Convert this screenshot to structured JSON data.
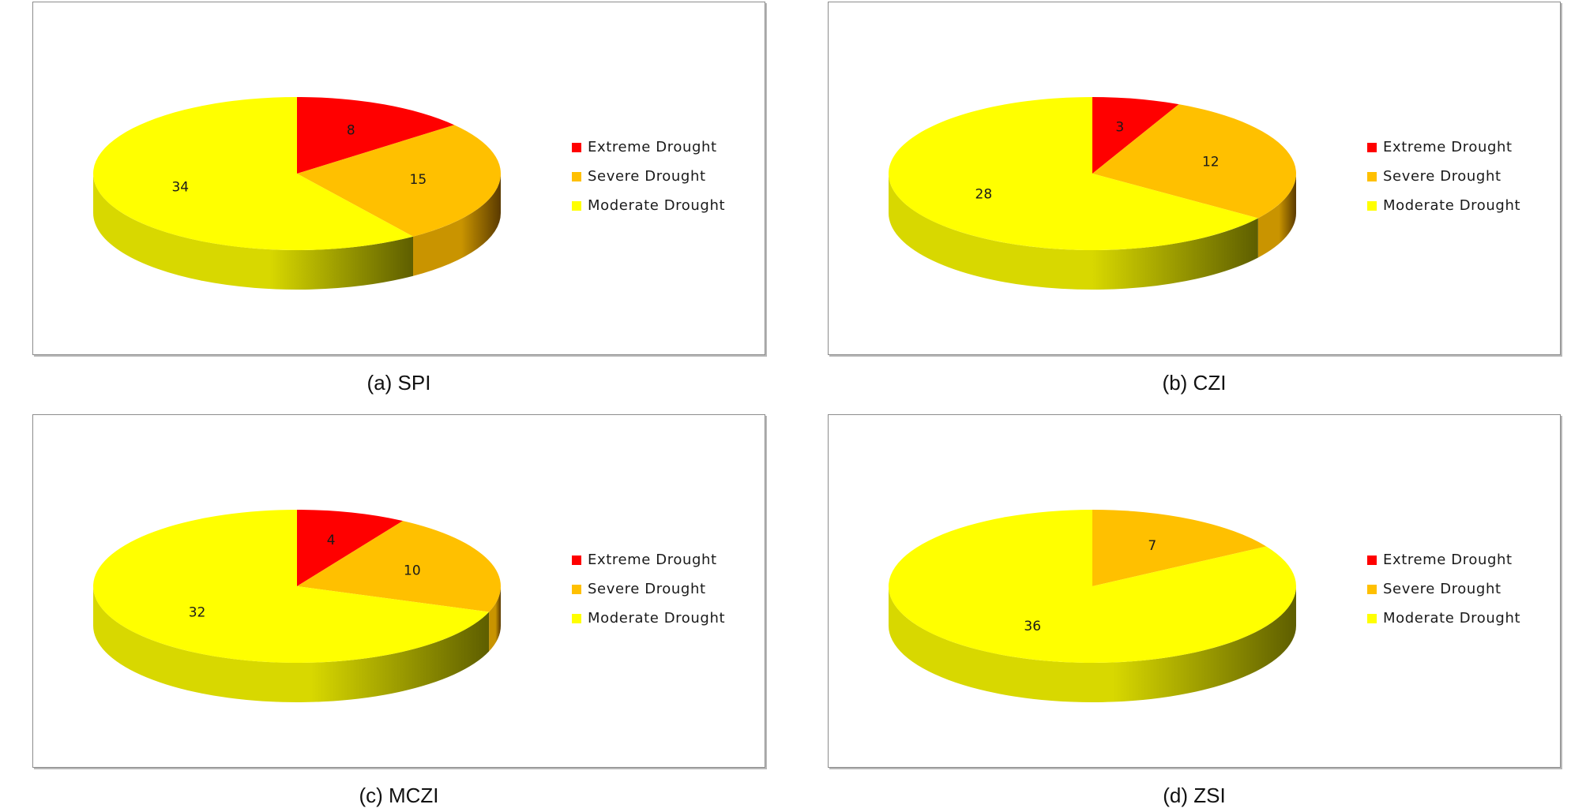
{
  "chart_data": [
    {
      "type": "pie",
      "caption": "(a) SPI",
      "categories": [
        "Extreme Drought",
        "Severe Drought",
        "Moderate Drought"
      ],
      "values": [
        8,
        15,
        34
      ],
      "data_labels": [
        "8",
        "15",
        "34"
      ],
      "legend_position": "right"
    },
    {
      "type": "pie",
      "caption": "(b) CZI",
      "categories": [
        "Extreme Drought",
        "Severe Drought",
        "Moderate Drought"
      ],
      "values": [
        3,
        12,
        28
      ],
      "data_labels": [
        "3",
        "12",
        "28"
      ],
      "legend_position": "right"
    },
    {
      "type": "pie",
      "caption": "(c) MCZI",
      "categories": [
        "Extreme Drought",
        "Severe Drought",
        "Moderate Drought"
      ],
      "values": [
        4,
        10,
        32
      ],
      "data_labels": [
        "4",
        "10",
        "32"
      ],
      "legend_position": "right"
    },
    {
      "type": "pie",
      "caption": "(d) ZSI",
      "categories": [
        "Extreme Drought",
        "Severe Drought",
        "Moderate Drought"
      ],
      "values": [
        0,
        7,
        36
      ],
      "data_labels": [
        "",
        "7",
        "36"
      ],
      "legend_position": "right"
    }
  ],
  "colors": {
    "Extreme Drought": "#ff0000",
    "Severe Drought": "#ffc000",
    "Moderate Drought": "#ffff00"
  }
}
